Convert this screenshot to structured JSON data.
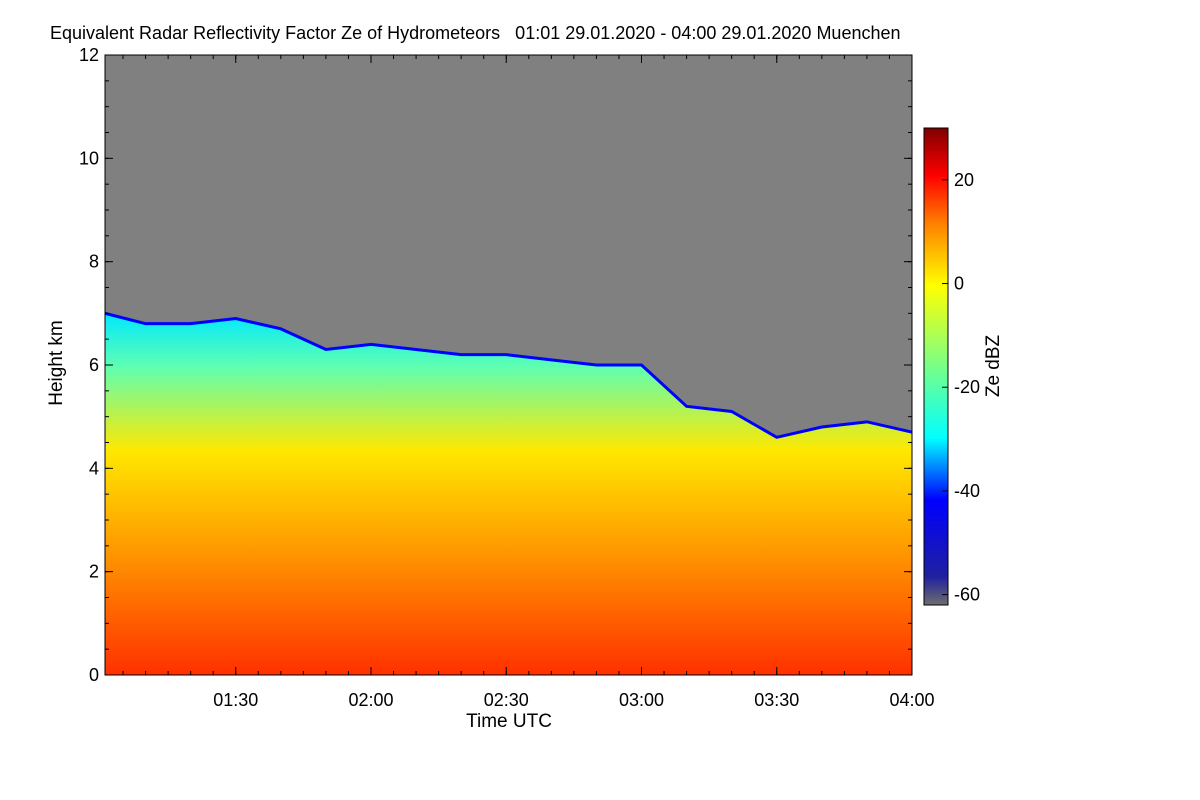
{
  "chart_data": {
    "type": "heatmap",
    "title": "Equivalent Radar Reflectivity Factor Ze of Hydrometeors   01:01 29.01.2020 - 04:00 29.01.2020 Muenchen",
    "xlabel": "Time UTC",
    "ylabel": "Height km",
    "colorbar_label": "Ze dBZ",
    "xlim": [
      "01:01",
      "04:00"
    ],
    "ylim": [
      0,
      12
    ],
    "x_ticks": [
      "01:30",
      "02:00",
      "02:30",
      "03:00",
      "03:30",
      "04:00"
    ],
    "y_ticks": [
      0,
      2,
      4,
      6,
      8,
      10,
      12
    ],
    "colorbar_range": [
      -62,
      30
    ],
    "colorbar_ticks": [
      20,
      0,
      -20,
      -40,
      -60
    ],
    "no_signal_color": "#808080",
    "colormap": [
      "#6e6e6e",
      "#0a0aa0",
      "#0000ff",
      "#00ffff",
      "#ffff00",
      "#ff8000",
      "#ff0000",
      "#800000"
    ],
    "cloud_top_km": [
      [
        "01:01",
        7.0
      ],
      [
        "01:10",
        6.8
      ],
      [
        "01:20",
        6.8
      ],
      [
        "01:30",
        6.9
      ],
      [
        "01:40",
        6.7
      ],
      [
        "01:50",
        6.3
      ],
      [
        "02:00",
        6.4
      ],
      [
        "02:10",
        6.3
      ],
      [
        "02:20",
        6.2
      ],
      [
        "02:30",
        6.2
      ],
      [
        "02:40",
        6.1
      ],
      [
        "02:50",
        6.0
      ],
      [
        "03:00",
        6.0
      ],
      [
        "03:10",
        5.2
      ],
      [
        "03:20",
        5.1
      ],
      [
        "03:30",
        4.6
      ],
      [
        "03:40",
        4.8
      ],
      [
        "03:50",
        4.9
      ],
      [
        "04:00",
        4.7
      ]
    ]
  }
}
